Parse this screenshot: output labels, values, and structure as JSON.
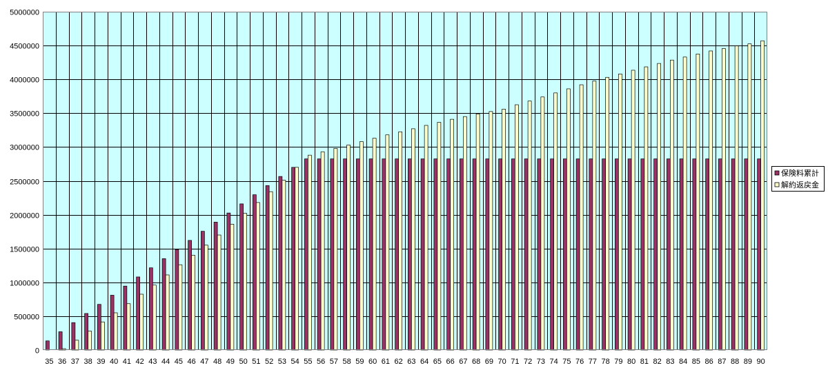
{
  "chart_data": {
    "type": "bar",
    "title": "",
    "xlabel": "",
    "ylabel": "",
    "ylim": [
      0,
      5000000
    ],
    "y_ticks": [
      "0",
      "500000",
      "1000000",
      "1500000",
      "2000000",
      "2500000",
      "3000000",
      "3500000",
      "4000000",
      "4500000",
      "5000000"
    ],
    "grid": true,
    "legend_position": "right",
    "plot_background": "#ccffff",
    "categories": [
      "35",
      "36",
      "37",
      "38",
      "39",
      "40",
      "41",
      "42",
      "43",
      "44",
      "45",
      "46",
      "47",
      "48",
      "49",
      "50",
      "51",
      "52",
      "53",
      "54",
      "55",
      "56",
      "57",
      "58",
      "59",
      "60",
      "61",
      "62",
      "63",
      "64",
      "65",
      "66",
      "67",
      "68",
      "69",
      "70",
      "71",
      "72",
      "73",
      "74",
      "75",
      "76",
      "77",
      "78",
      "79",
      "80",
      "81",
      "82",
      "83",
      "84",
      "85",
      "86",
      "87",
      "88",
      "89",
      "90"
    ],
    "series": [
      {
        "name": "保険料累計",
        "color": "#993366",
        "values": [
          135000,
          270000,
          405000,
          540000,
          675000,
          810000,
          945000,
          1080000,
          1215000,
          1350000,
          1485000,
          1620000,
          1755000,
          1890000,
          2025000,
          2160000,
          2295000,
          2430000,
          2565000,
          2700000,
          2825000,
          2825000,
          2825000,
          2825000,
          2825000,
          2825000,
          2825000,
          2825000,
          2825000,
          2825000,
          2825000,
          2825000,
          2825000,
          2825000,
          2825000,
          2825000,
          2825000,
          2825000,
          2825000,
          2825000,
          2825000,
          2825000,
          2825000,
          2825000,
          2825000,
          2825000,
          2825000,
          2825000,
          2825000,
          2825000,
          2825000,
          2825000,
          2825000,
          2825000,
          2825000,
          2825000
        ]
      },
      {
        "name": "解約返戻金",
        "color": "#ffffcc",
        "values": [
          0,
          20000,
          145000,
          280000,
          415000,
          550000,
          685000,
          825000,
          960000,
          1110000,
          1260000,
          1400000,
          1550000,
          1700000,
          1860000,
          2020000,
          2180000,
          2340000,
          2510000,
          2700000,
          2880000,
          2930000,
          2980000,
          3030000,
          3080000,
          3130000,
          3180000,
          3225000,
          3270000,
          3320000,
          3365000,
          3410000,
          3450000,
          3490000,
          3525000,
          3560000,
          3625000,
          3680000,
          3740000,
          3800000,
          3860000,
          3920000,
          3975000,
          4030000,
          4080000,
          4135000,
          4185000,
          4235000,
          4285000,
          4330000,
          4375000,
          4420000,
          4455000,
          4495000,
          4525000,
          4570000
        ]
      }
    ]
  }
}
